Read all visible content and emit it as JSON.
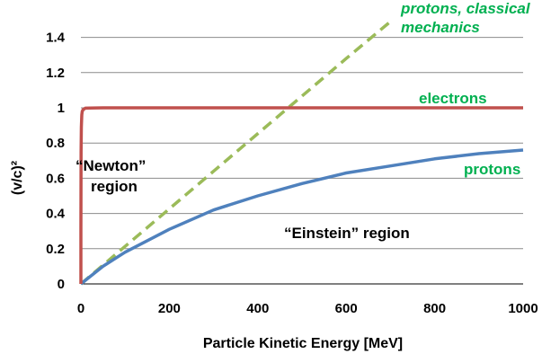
{
  "chart_data": {
    "type": "line",
    "xlabel": "Particle Kinetic Energy [MeV]",
    "ylabel": "(v/c)²",
    "xlim": [
      0,
      1000
    ],
    "ylim": [
      0,
      1.5
    ],
    "x_ticks": [
      "0",
      "200",
      "400",
      "600",
      "800",
      "1000"
    ],
    "y_ticks": [
      "0",
      "0.2",
      "0.4",
      "0.6",
      "0.8",
      "1",
      "1.2",
      "1.4"
    ],
    "grid": "horizontal",
    "series": [
      {
        "name": "electrons",
        "color": "#c0504d",
        "style": "solid",
        "x": [
          0,
          0.1,
          0.25,
          0.5,
          1,
          2,
          3,
          5,
          10,
          20,
          50,
          100,
          200,
          400,
          600,
          800,
          1000
        ],
        "y": [
          0,
          0.3,
          0.54,
          0.75,
          0.89,
          0.96,
          0.98,
          0.99,
          0.998,
          0.999,
          1.0,
          1.0,
          1.0,
          1.0,
          1.0,
          1.0,
          1.0
        ]
      },
      {
        "name": "protons",
        "color": "#4f81bd",
        "style": "solid",
        "x": [
          0,
          50,
          100,
          200,
          300,
          400,
          500,
          600,
          700,
          800,
          900,
          1000
        ],
        "y": [
          0,
          0.1,
          0.18,
          0.31,
          0.42,
          0.5,
          0.57,
          0.63,
          0.67,
          0.71,
          0.74,
          0.76
        ]
      },
      {
        "name": "protons, classical mechanics",
        "color": "#9bbb59",
        "style": "dashed",
        "x": [
          0,
          150,
          300,
          450,
          600,
          700
        ],
        "y": [
          0,
          0.32,
          0.64,
          0.96,
          1.28,
          1.49
        ]
      }
    ],
    "annotations": {
      "classical_label_line1": "protons, classical",
      "classical_label_line2": "mechanics",
      "electrons_label": "electrons",
      "protons_label": "protons",
      "newton_label_line1": "“Newton”",
      "newton_label_line2": "region",
      "einstein_label": "“Einstein” region"
    },
    "label_color": "#00b050"
  }
}
